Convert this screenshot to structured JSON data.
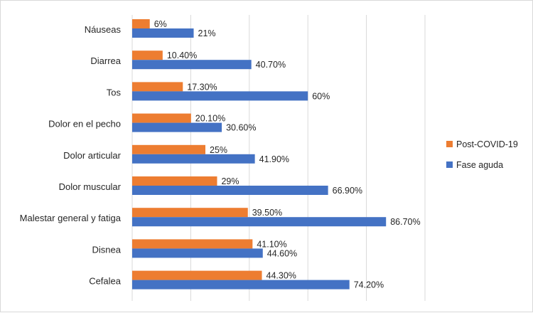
{
  "chart_data": {
    "type": "bar",
    "orientation": "horizontal",
    "categories": [
      "Náuseas",
      "Diarrea",
      "Tos",
      "Dolor en el pecho",
      "Dolor articular",
      "Dolor muscular",
      "Malestar general y fatiga",
      "Disnea",
      "Cefalea"
    ],
    "series": [
      {
        "name": "Post-COVID-19",
        "color": "#ED7D31",
        "values": [
          6,
          10.4,
          17.3,
          20.1,
          25,
          29,
          39.5,
          41.1,
          44.3
        ],
        "labels": [
          "6%",
          "10.40%",
          "17.30%",
          "20.10%",
          "25%",
          "29%",
          "39.50%",
          "41.10%",
          "44.30%"
        ]
      },
      {
        "name": "Fase aguda",
        "color": "#4472C4",
        "values": [
          21,
          40.7,
          60,
          30.6,
          41.9,
          66.9,
          86.7,
          44.6,
          74.2
        ],
        "labels": [
          "21%",
          "40.70%",
          "60%",
          "30.60%",
          "41.90%",
          "66.90%",
          "86.70%",
          "44.60%",
          "74.20%"
        ]
      }
    ],
    "xlim": [
      0,
      100
    ],
    "grid": true,
    "legend": "right"
  }
}
